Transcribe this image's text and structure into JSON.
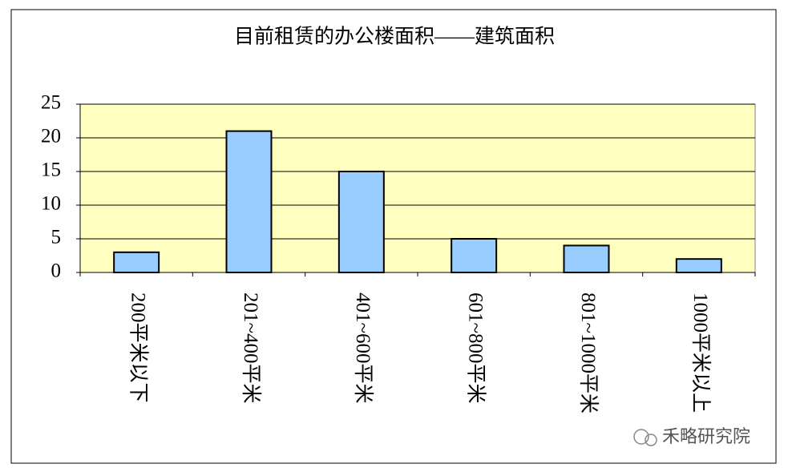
{
  "chart_data": {
    "type": "bar",
    "title": "目前租赁的办公楼面积——建筑面积",
    "categories": [
      "200平米以下",
      "201~400平米",
      "401~600平米",
      "601~800平米",
      "801~1000平米",
      "1000平米以上"
    ],
    "values": [
      3,
      21,
      15,
      5,
      4,
      2
    ],
    "color": "#99ccff",
    "ylim": [
      0,
      25
    ],
    "yticks": [
      0,
      5,
      10,
      15,
      20,
      25
    ],
    "grid": true,
    "annotation": "禾略研究院"
  }
}
